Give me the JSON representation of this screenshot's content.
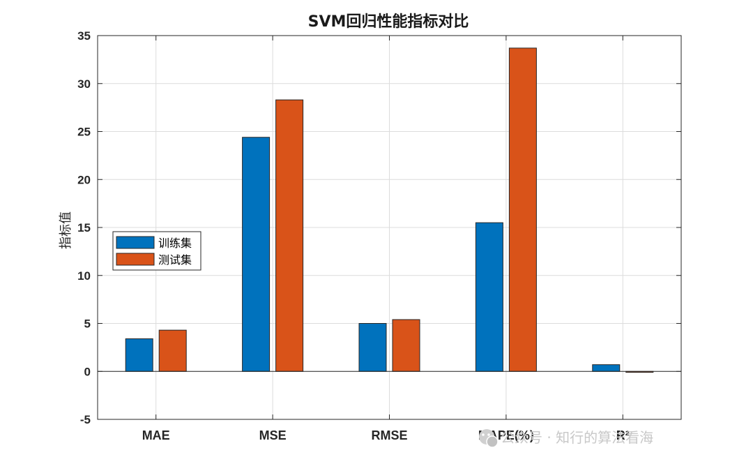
{
  "chart_data": {
    "type": "bar",
    "title": "SVM回归性能指标对比",
    "xlabel": "",
    "ylabel": "指标值",
    "categories": [
      "MAE",
      "MSE",
      "RMSE",
      "MAPE(%)",
      "R²"
    ],
    "series": [
      {
        "name": "训练集",
        "color": "#0072BD",
        "values": [
          3.4,
          24.4,
          5.0,
          15.5,
          0.7
        ]
      },
      {
        "name": "测试集",
        "color": "#D95319",
        "values": [
          4.3,
          28.3,
          5.4,
          33.7,
          -0.1
        ]
      }
    ],
    "ylim": [
      -5,
      35
    ],
    "yticks": [
      -5,
      0,
      5,
      10,
      15,
      20,
      25,
      30,
      35
    ],
    "grid": true,
    "legend_position": "middle-left"
  },
  "watermark": {
    "text": "公众号 · 知行的算法看海",
    "icon": "wechat-icon"
  }
}
